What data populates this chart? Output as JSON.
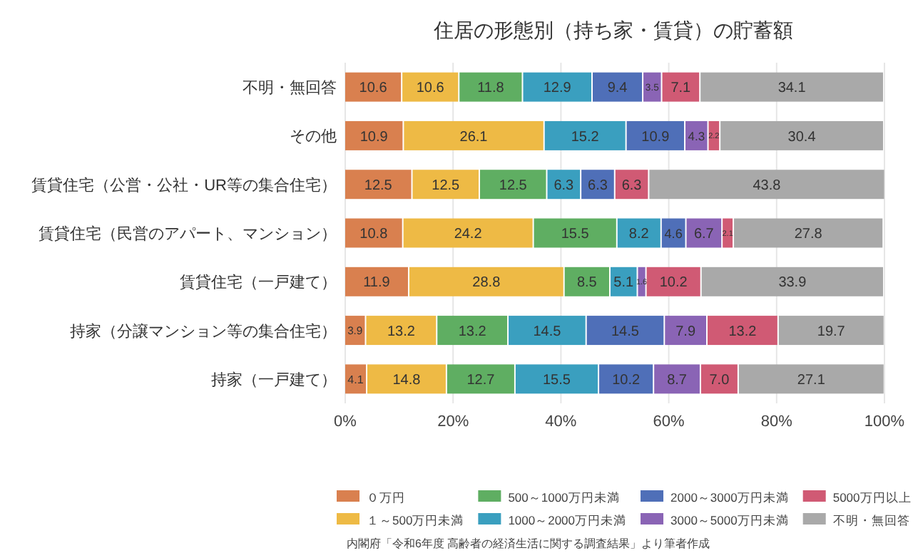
{
  "chart_data": {
    "type": "bar",
    "orientation": "horizontal",
    "stacked": true,
    "title": "住居の形態別（持ち家・賃貸）の貯蓄額",
    "categories": [
      "不明・無回答",
      "その他",
      "賃貸住宅（公営・公社・UR等の集合住宅）",
      "賃貸住宅（民営のアパート、マンション）",
      "賃貸住宅（一戸建て）",
      "持家（分譲マンション等の集合住宅）",
      "持家（一戸建て）"
    ],
    "series": [
      {
        "name": "０万円",
        "color": "#d9804f",
        "values": [
          10.6,
          10.9,
          12.5,
          10.8,
          11.9,
          3.9,
          4.1
        ]
      },
      {
        "name": "１～500万円未満",
        "color": "#eeba45",
        "values": [
          10.6,
          26.1,
          12.5,
          24.2,
          28.8,
          13.2,
          14.8
        ]
      },
      {
        "name": "500～1000万円未満",
        "color": "#5fae62",
        "values": [
          11.8,
          null,
          12.5,
          15.5,
          8.5,
          13.2,
          12.7
        ]
      },
      {
        "name": "1000～2000万円未満",
        "color": "#3a9fbf",
        "values": [
          12.9,
          15.2,
          6.3,
          8.2,
          5.1,
          14.5,
          15.5
        ]
      },
      {
        "name": "2000～3000万円未満",
        "color": "#4f6fb8",
        "values": [
          9.4,
          10.9,
          6.3,
          4.6,
          null,
          14.5,
          10.2
        ]
      },
      {
        "name": "3000～5000万円未満",
        "color": "#8a64b5",
        "values": [
          3.5,
          4.3,
          null,
          6.7,
          1.6,
          7.9,
          8.7
        ]
      },
      {
        "name": "5000万円以上",
        "color": "#d05a74",
        "values": [
          7.1,
          2.2,
          6.3,
          2.1,
          10.2,
          13.2,
          7.0
        ],
        "value_labels": [
          "7.1",
          "2.2",
          "6.3",
          "2.1",
          "10.2",
          "13.2",
          "7.0"
        ]
      },
      {
        "name": "不明・無回答",
        "color": "#a9a9a9",
        "values": [
          34.1,
          30.4,
          43.8,
          27.8,
          33.9,
          19.7,
          27.1
        ]
      }
    ],
    "xlim": [
      0,
      100
    ],
    "xticks": [
      {
        "value": 0,
        "label": "0%"
      },
      {
        "value": 20,
        "label": "20%"
      },
      {
        "value": 40,
        "label": "40%"
      },
      {
        "value": 60,
        "label": "60%"
      },
      {
        "value": 80,
        "label": "80%"
      },
      {
        "value": 100,
        "label": "100%"
      }
    ],
    "grid": "x",
    "legend": "bottom",
    "data_labels": true,
    "annotations": [
      "内閣府「令和6年度 高齢者の経済生活に関する調査結果」より筆者作成"
    ]
  }
}
